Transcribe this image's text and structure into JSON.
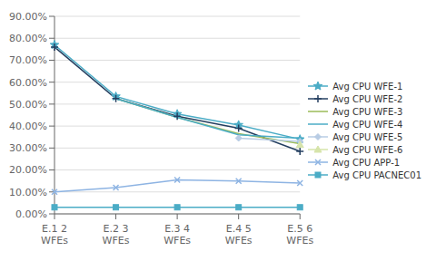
{
  "chart_data": {
    "type": "line",
    "categories": [
      "E.1 2\nWFEs",
      "E.2 3\nWFEs",
      "E.3 4\nWFEs",
      "E.4 5\nWFEs",
      "E.5 6\nWFEs"
    ],
    "series": [
      {
        "name": "Avg CPU WFE-1",
        "color": "#4BACC6",
        "marker": "star",
        "values": [
          0.77,
          0.535,
          0.455,
          0.405,
          0.34
        ]
      },
      {
        "name": "Avg CPU WFE-2",
        "color": "#243F60",
        "marker": "plus",
        "values": [
          0.76,
          0.525,
          0.445,
          0.39,
          0.285
        ]
      },
      {
        "name": "Avg CPU WFE-3",
        "color": "#9BBB59",
        "marker": "none",
        "values": [
          null,
          0.525,
          0.44,
          0.365,
          0.32
        ]
      },
      {
        "name": "Avg CPU WFE-4",
        "color": "#4BACC6",
        "marker": "none",
        "values": [
          null,
          0.525,
          0.44,
          0.36,
          0.345
        ]
      },
      {
        "name": "Avg CPU WFE-5",
        "color": "#B8CCE4",
        "marker": "diamond",
        "values": [
          null,
          null,
          null,
          0.345,
          0.33
        ]
      },
      {
        "name": "Avg CPU WFE-6",
        "color": "#D6E4AA",
        "marker": "triangle",
        "values": [
          null,
          null,
          null,
          null,
          0.315
        ]
      },
      {
        "name": "Avg CPU APP-1",
        "color": "#8EB4E3",
        "marker": "x",
        "values": [
          0.1,
          0.12,
          0.155,
          0.15,
          0.14
        ]
      },
      {
        "name": "Avg CPU PACNEC01",
        "color": "#4BACC6",
        "marker": "square",
        "values": [
          0.03,
          0.03,
          0.03,
          0.03,
          0.03
        ]
      }
    ],
    "ylim": [
      0.0,
      0.9
    ],
    "yticks": [
      {
        "value": 0.0,
        "label": "0.00%"
      },
      {
        "value": 0.1,
        "label": "10.00%"
      },
      {
        "value": 0.2,
        "label": "20.00%"
      },
      {
        "value": 0.3,
        "label": "30.00%"
      },
      {
        "value": 0.4,
        "label": "40.00%"
      },
      {
        "value": 0.5,
        "label": "50.00%"
      },
      {
        "value": 0.6,
        "label": "60.00%"
      },
      {
        "value": 0.7,
        "label": "70.00%"
      },
      {
        "value": 0.8,
        "label": "80.00%"
      },
      {
        "value": 0.9,
        "label": "90.00%"
      }
    ],
    "grid": true,
    "legend": "right"
  }
}
